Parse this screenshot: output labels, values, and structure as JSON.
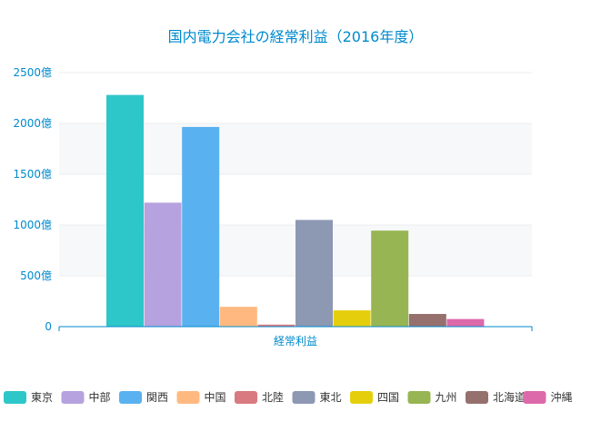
{
  "chart_data": {
    "type": "bar",
    "title": "国内電力会社の経常利益（2016年度）",
    "xlabel": "",
    "ylabel": "",
    "categories": [
      "経常利益"
    ],
    "y_ticks": [
      "0",
      "500億",
      "1000億",
      "1500億",
      "2000億",
      "2500億"
    ],
    "ylim": [
      0,
      2500
    ],
    "grid": "horizontal-bands",
    "legend_position": "bottom",
    "series": [
      {
        "name": "東京",
        "values": [
          2280
        ],
        "color": "#2ec7c9"
      },
      {
        "name": "中部",
        "values": [
          1220
        ],
        "color": "#b6a2de"
      },
      {
        "name": "関西",
        "values": [
          1965
        ],
        "color": "#5ab1ef"
      },
      {
        "name": "中国",
        "values": [
          195
        ],
        "color": "#ffb980"
      },
      {
        "name": "北陸",
        "values": [
          20
        ],
        "color": "#d87a80"
      },
      {
        "name": "東北",
        "values": [
          1050
        ],
        "color": "#8d98b3"
      },
      {
        "name": "四国",
        "values": [
          160
        ],
        "color": "#e5cf0d"
      },
      {
        "name": "九州",
        "values": [
          945
        ],
        "color": "#97b552"
      },
      {
        "name": "北海道",
        "values": [
          125
        ],
        "color": "#95706d"
      },
      {
        "name": "沖縄",
        "values": [
          75
        ],
        "color": "#dc69aa"
      }
    ]
  }
}
